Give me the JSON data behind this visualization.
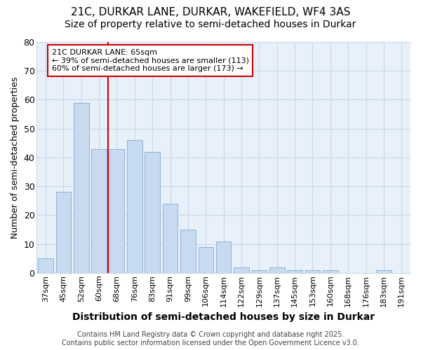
{
  "title1": "21C, DURKAR LANE, DURKAR, WAKEFIELD, WF4 3AS",
  "title2": "Size of property relative to semi-detached houses in Durkar",
  "xlabel": "Distribution of semi-detached houses by size in Durkar",
  "ylabel": "Number of semi-detached properties",
  "categories": [
    "37sqm",
    "45sqm",
    "52sqm",
    "60sqm",
    "68sqm",
    "76sqm",
    "83sqm",
    "91sqm",
    "99sqm",
    "106sqm",
    "114sqm",
    "122sqm",
    "129sqm",
    "137sqm",
    "145sqm",
    "153sqm",
    "160sqm",
    "168sqm",
    "176sqm",
    "183sqm",
    "191sqm"
  ],
  "values": [
    5,
    28,
    59,
    43,
    43,
    46,
    42,
    24,
    15,
    9,
    11,
    2,
    1,
    2,
    1,
    1,
    1,
    0,
    0,
    1,
    0
  ],
  "bar_color": "#c8daf0",
  "bar_edge_color": "#8ab4d8",
  "grid_color": "#c8d8ec",
  "background_color": "#ffffff",
  "plot_bg_color": "#e8f0fa",
  "red_line_index": 4,
  "annotation_text_line1": "21C DURKAR LANE: 65sqm",
  "annotation_text_line2": "← 39% of semi-detached houses are smaller (113)",
  "annotation_text_line3": "60% of semi-detached houses are larger (173) →",
  "annotation_box_color": "#ffffff",
  "annotation_border_color": "#cc0000",
  "ylim": [
    0,
    80
  ],
  "yticks": [
    0,
    10,
    20,
    30,
    40,
    50,
    60,
    70,
    80
  ],
  "footer1": "Contains HM Land Registry data © Crown copyright and database right 2025.",
  "footer2": "Contains public sector information licensed under the Open Government Licence v3.0.",
  "title1_fontsize": 11,
  "title2_fontsize": 10,
  "xlabel_fontsize": 10,
  "ylabel_fontsize": 9,
  "tick_fontsize": 8,
  "footer_fontsize": 7
}
